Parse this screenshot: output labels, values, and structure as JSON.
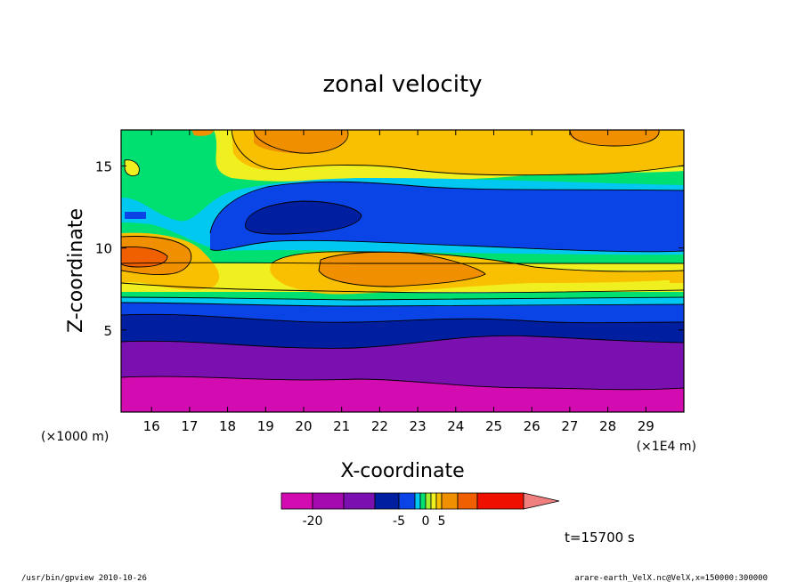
{
  "chart_data": {
    "type": "heatmap",
    "title": "zonal velocity",
    "xlabel": "X-coordinate",
    "ylabel": "Z-coordinate",
    "x_unit_left": "(×1000 m)",
    "x_unit_right": "(×1E4 m)",
    "x_ticks": [
      "16",
      "17",
      "18",
      "19",
      "20",
      "21",
      "22",
      "23",
      "24",
      "25",
      "26",
      "27",
      "28",
      "29"
    ],
    "xlim": [
      15.2,
      30.0
    ],
    "y_ticks": [
      "5",
      "10",
      "15"
    ],
    "ylim": [
      0.0,
      17.2
    ],
    "colorbar": {
      "colors": [
        "#d20cb0",
        "#a40ab0",
        "#7a10b0",
        "#001ea0",
        "#0a44e6",
        "#00c8f0",
        "#00e070",
        "#a0f030",
        "#f0f020",
        "#f8c000",
        "#f09000",
        "#f06000",
        "#f01000",
        "#f08080"
      ],
      "labels": [
        "-20",
        "-5",
        "0",
        "5"
      ],
      "levels": [
        -25,
        -20,
        -15,
        -10,
        -5,
        -3,
        -1,
        0,
        1,
        3,
        5,
        10,
        15,
        20
      ]
    },
    "time_label": "t=15700 s",
    "footer_left": "/usr/bin/gpview   2010-10-26",
    "footer_right": "arare-earth_VelX.nc@VelX,x=150000:300000"
  }
}
